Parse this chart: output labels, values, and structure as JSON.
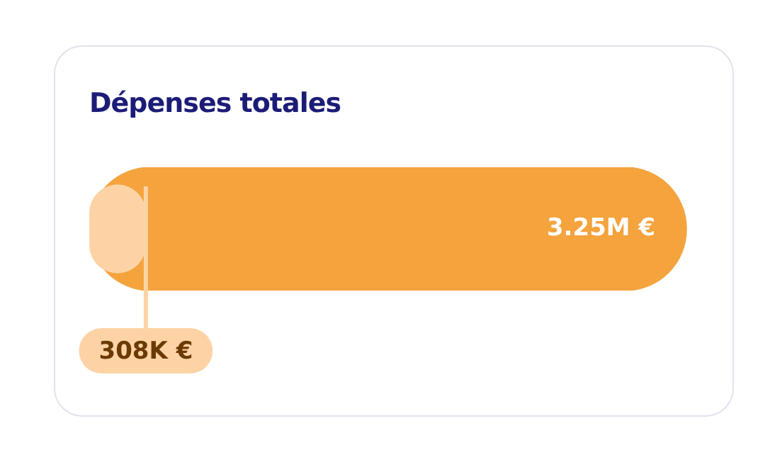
{
  "chart_data": {
    "type": "bar",
    "title": "Dépenses totales",
    "orientation": "horizontal",
    "categories": [
      null
    ],
    "tick_labels": false,
    "legend": false,
    "series": [
      {
        "color": "#f4a33d",
        "values": [
          3250000
        ],
        "value_labels": [
          "3.25M €"
        ]
      },
      {
        "color": "#fdd3a5",
        "values": [
          308000
        ],
        "value_labels": [
          "308K €"
        ]
      }
    ]
  }
}
